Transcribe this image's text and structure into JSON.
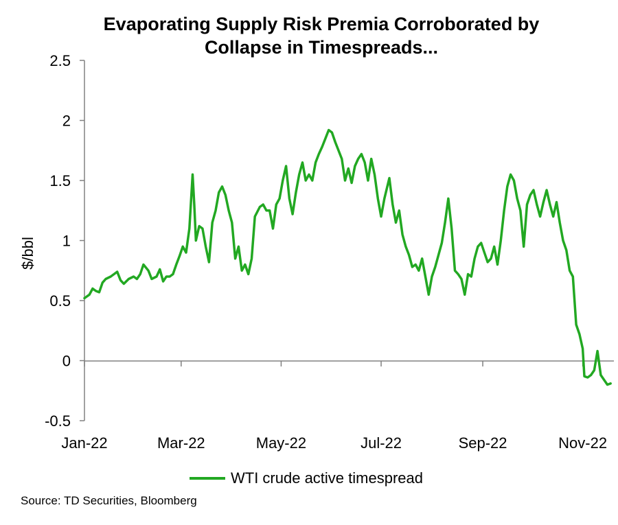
{
  "chart_data": {
    "type": "line",
    "title_line1": "Evaporating Supply Risk Premia Corroborated by",
    "title_line2": "Collapse in Timespreads...",
    "ylabel": "$/bbl",
    "xlabel": "",
    "ylim": [
      -0.5,
      2.5
    ],
    "yticks": [
      -0.5,
      0,
      0.5,
      1,
      1.5,
      2,
      2.5
    ],
    "ytick_labels": [
      "-0.5",
      "0",
      "0.5",
      "1",
      "1.5",
      "2",
      "2.5"
    ],
    "x_tick_labels": [
      "Jan-22",
      "Mar-22",
      "May-22",
      "Jul-22",
      "Sep-22",
      "Nov-22"
    ],
    "x_tick_dates": [
      "2022-01-01",
      "2022-03-01",
      "2022-05-01",
      "2022-07-01",
      "2022-09-01",
      "2022-11-01"
    ],
    "grid": false,
    "legend_position": "bottom",
    "series": [
      {
        "name": "WTI crude active timespread",
        "color": "#22a822",
        "points": [
          [
            "2022-01-01",
            0.52
          ],
          [
            "2022-01-04",
            0.55
          ],
          [
            "2022-01-06",
            0.6
          ],
          [
            "2022-01-08",
            0.58
          ],
          [
            "2022-01-10",
            0.57
          ],
          [
            "2022-01-12",
            0.65
          ],
          [
            "2022-01-14",
            0.68
          ],
          [
            "2022-01-17",
            0.7
          ],
          [
            "2022-01-19",
            0.72
          ],
          [
            "2022-01-21",
            0.74
          ],
          [
            "2022-01-23",
            0.67
          ],
          [
            "2022-01-25",
            0.64
          ],
          [
            "2022-01-28",
            0.68
          ],
          [
            "2022-01-31",
            0.7
          ],
          [
            "2022-02-02",
            0.68
          ],
          [
            "2022-02-04",
            0.72
          ],
          [
            "2022-02-06",
            0.8
          ],
          [
            "2022-02-09",
            0.75
          ],
          [
            "2022-02-11",
            0.68
          ],
          [
            "2022-02-14",
            0.7
          ],
          [
            "2022-02-16",
            0.76
          ],
          [
            "2022-02-18",
            0.66
          ],
          [
            "2022-02-20",
            0.7
          ],
          [
            "2022-02-22",
            0.7
          ],
          [
            "2022-02-24",
            0.72
          ],
          [
            "2022-02-26",
            0.8
          ],
          [
            "2022-02-28",
            0.87
          ],
          [
            "2022-03-02",
            0.95
          ],
          [
            "2022-03-04",
            0.9
          ],
          [
            "2022-03-06",
            1.1
          ],
          [
            "2022-03-08",
            1.55
          ],
          [
            "2022-03-09",
            1.3
          ],
          [
            "2022-03-10",
            1.0
          ],
          [
            "2022-03-12",
            1.12
          ],
          [
            "2022-03-14",
            1.1
          ],
          [
            "2022-03-16",
            0.95
          ],
          [
            "2022-03-18",
            0.82
          ],
          [
            "2022-03-20",
            1.15
          ],
          [
            "2022-03-22",
            1.25
          ],
          [
            "2022-03-24",
            1.4
          ],
          [
            "2022-03-26",
            1.45
          ],
          [
            "2022-03-28",
            1.38
          ],
          [
            "2022-03-30",
            1.25
          ],
          [
            "2022-04-01",
            1.15
          ],
          [
            "2022-04-03",
            0.85
          ],
          [
            "2022-04-05",
            0.95
          ],
          [
            "2022-04-07",
            0.75
          ],
          [
            "2022-04-09",
            0.8
          ],
          [
            "2022-04-11",
            0.72
          ],
          [
            "2022-04-13",
            0.85
          ],
          [
            "2022-04-15",
            1.2
          ],
          [
            "2022-04-18",
            1.28
          ],
          [
            "2022-04-20",
            1.3
          ],
          [
            "2022-04-22",
            1.25
          ],
          [
            "2022-04-24",
            1.25
          ],
          [
            "2022-04-26",
            1.1
          ],
          [
            "2022-04-28",
            1.3
          ],
          [
            "2022-04-30",
            1.35
          ],
          [
            "2022-05-02",
            1.5
          ],
          [
            "2022-05-04",
            1.62
          ],
          [
            "2022-05-06",
            1.35
          ],
          [
            "2022-05-08",
            1.22
          ],
          [
            "2022-05-10",
            1.4
          ],
          [
            "2022-05-12",
            1.55
          ],
          [
            "2022-05-14",
            1.65
          ],
          [
            "2022-05-16",
            1.5
          ],
          [
            "2022-05-18",
            1.55
          ],
          [
            "2022-05-20",
            1.5
          ],
          [
            "2022-05-22",
            1.65
          ],
          [
            "2022-05-24",
            1.72
          ],
          [
            "2022-05-26",
            1.78
          ],
          [
            "2022-05-28",
            1.85
          ],
          [
            "2022-05-30",
            1.92
          ],
          [
            "2022-06-01",
            1.9
          ],
          [
            "2022-06-03",
            1.82
          ],
          [
            "2022-06-05",
            1.75
          ],
          [
            "2022-06-07",
            1.68
          ],
          [
            "2022-06-09",
            1.5
          ],
          [
            "2022-06-11",
            1.6
          ],
          [
            "2022-06-13",
            1.48
          ],
          [
            "2022-06-15",
            1.62
          ],
          [
            "2022-06-17",
            1.68
          ],
          [
            "2022-06-19",
            1.72
          ],
          [
            "2022-06-21",
            1.65
          ],
          [
            "2022-06-23",
            1.5
          ],
          [
            "2022-06-25",
            1.68
          ],
          [
            "2022-06-27",
            1.55
          ],
          [
            "2022-06-29",
            1.35
          ],
          [
            "2022-07-01",
            1.2
          ],
          [
            "2022-07-03",
            1.35
          ],
          [
            "2022-07-06",
            1.52
          ],
          [
            "2022-07-08",
            1.3
          ],
          [
            "2022-07-10",
            1.15
          ],
          [
            "2022-07-12",
            1.25
          ],
          [
            "2022-07-14",
            1.05
          ],
          [
            "2022-07-16",
            0.95
          ],
          [
            "2022-07-18",
            0.88
          ],
          [
            "2022-07-20",
            0.78
          ],
          [
            "2022-07-22",
            0.8
          ],
          [
            "2022-07-24",
            0.75
          ],
          [
            "2022-07-26",
            0.85
          ],
          [
            "2022-07-28",
            0.7
          ],
          [
            "2022-07-30",
            0.55
          ],
          [
            "2022-08-01",
            0.7
          ],
          [
            "2022-08-03",
            0.78
          ],
          [
            "2022-08-05",
            0.88
          ],
          [
            "2022-08-07",
            0.98
          ],
          [
            "2022-08-09",
            1.15
          ],
          [
            "2022-08-11",
            1.35
          ],
          [
            "2022-08-13",
            1.1
          ],
          [
            "2022-08-15",
            0.75
          ],
          [
            "2022-08-17",
            0.72
          ],
          [
            "2022-08-19",
            0.68
          ],
          [
            "2022-08-21",
            0.55
          ],
          [
            "2022-08-23",
            0.72
          ],
          [
            "2022-08-25",
            0.7
          ],
          [
            "2022-08-27",
            0.85
          ],
          [
            "2022-08-29",
            0.95
          ],
          [
            "2022-08-31",
            0.98
          ],
          [
            "2022-09-02",
            0.9
          ],
          [
            "2022-09-04",
            0.82
          ],
          [
            "2022-09-06",
            0.85
          ],
          [
            "2022-09-08",
            0.95
          ],
          [
            "2022-09-10",
            0.8
          ],
          [
            "2022-09-12",
            1.0
          ],
          [
            "2022-09-14",
            1.25
          ],
          [
            "2022-09-16",
            1.45
          ],
          [
            "2022-09-18",
            1.55
          ],
          [
            "2022-09-20",
            1.5
          ],
          [
            "2022-09-22",
            1.35
          ],
          [
            "2022-09-24",
            1.25
          ],
          [
            "2022-09-26",
            0.95
          ],
          [
            "2022-09-28",
            1.3
          ],
          [
            "2022-09-30",
            1.38
          ],
          [
            "2022-10-02",
            1.42
          ],
          [
            "2022-10-04",
            1.3
          ],
          [
            "2022-10-06",
            1.2
          ],
          [
            "2022-10-08",
            1.32
          ],
          [
            "2022-10-10",
            1.42
          ],
          [
            "2022-10-12",
            1.3
          ],
          [
            "2022-10-14",
            1.2
          ],
          [
            "2022-10-16",
            1.32
          ],
          [
            "2022-10-18",
            1.15
          ],
          [
            "2022-10-20",
            1.0
          ],
          [
            "2022-10-22",
            0.92
          ],
          [
            "2022-10-24",
            0.75
          ],
          [
            "2022-10-26",
            0.7
          ],
          [
            "2022-10-28",
            0.3
          ],
          [
            "2022-10-30",
            0.22
          ],
          [
            "2022-11-01",
            0.1
          ],
          [
            "2022-11-02",
            -0.13
          ],
          [
            "2022-11-04",
            -0.14
          ],
          [
            "2022-11-06",
            -0.12
          ],
          [
            "2022-11-08",
            -0.08
          ],
          [
            "2022-11-10",
            0.08
          ],
          [
            "2022-11-12",
            -0.12
          ],
          [
            "2022-11-14",
            -0.16
          ],
          [
            "2022-11-16",
            -0.2
          ],
          [
            "2022-11-18",
            -0.19
          ]
        ]
      }
    ],
    "source": "Source: TD Securities, Bloomberg"
  }
}
